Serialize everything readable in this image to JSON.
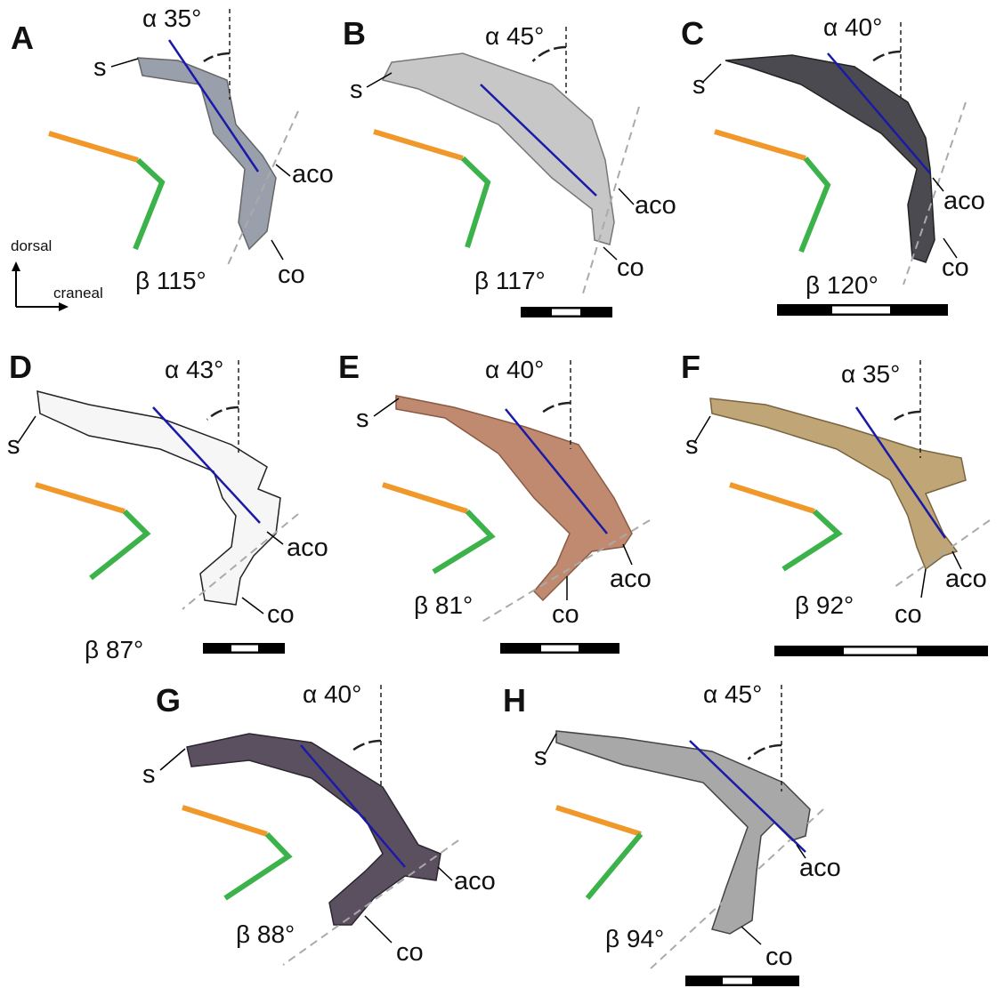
{
  "panels": [
    {
      "letter": "A",
      "alpha": "α 35°",
      "beta": "β 115°",
      "labels": [
        "s",
        "aco",
        "co"
      ]
    },
    {
      "letter": "B",
      "alpha": "α 45°",
      "beta": "β 117°",
      "labels": [
        "s",
        "aco",
        "co"
      ]
    },
    {
      "letter": "C",
      "alpha": "α 40°",
      "beta": "β 120°",
      "labels": [
        "s",
        "aco",
        "co"
      ]
    },
    {
      "letter": "D",
      "alpha": "α 43°",
      "beta": "β 87°",
      "labels": [
        "s",
        "aco",
        "co"
      ]
    },
    {
      "letter": "E",
      "alpha": "α 40°",
      "beta": "β 81°",
      "labels": [
        "s",
        "aco",
        "co"
      ]
    },
    {
      "letter": "F",
      "alpha": "α 35°",
      "beta": "β 92°",
      "labels": [
        "s",
        "aco",
        "co"
      ]
    },
    {
      "letter": "G",
      "alpha": "α 40°",
      "beta": "β 88°",
      "labels": [
        "s",
        "aco",
        "co"
      ]
    },
    {
      "letter": "H",
      "alpha": "α 45°",
      "beta": "β 94°",
      "labels": [
        "s",
        "aco",
        "co"
      ]
    }
  ],
  "orientation": {
    "vertical": "dorsal",
    "horizontal": "craneal"
  }
}
